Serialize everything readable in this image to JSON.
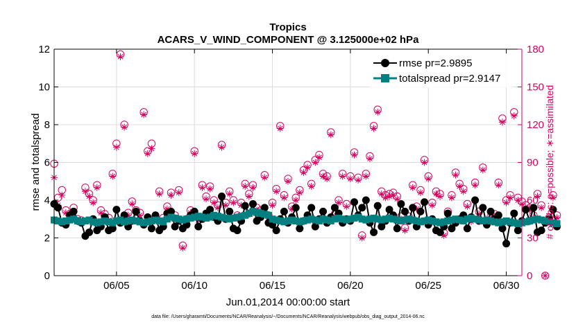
{
  "chart_data": {
    "type": "line",
    "title": "Tropics",
    "subtitle": "ACARS_V_WIND_COMPONENT @ 3.125000e+02 hPa",
    "xlabel": "Jun.01,2014 00:00:00 start",
    "ylabel_left": "rmse and totalspread",
    "ylabel_right": "# of obs: o=possible; ∗=assimilated",
    "footer": "data file: /Users/gharamti/Documents/NCAR/Reanalysis/~/Documents/NCAR/Reanalysis/webpub/obs_diag_output_2014-06.nc",
    "x_ticks": [
      5,
      10,
      15,
      20,
      25,
      30
    ],
    "x_tick_labels": [
      "06/05",
      "06/10",
      "06/15",
      "06/20",
      "06/25",
      "06/30"
    ],
    "xlim": [
      1,
      31
    ],
    "ylim_left": [
      0,
      12
    ],
    "y_ticks_left": [
      0,
      2,
      4,
      6,
      8,
      10,
      12
    ],
    "ylim_right": [
      0,
      180
    ],
    "y_ticks_right": [
      0,
      30,
      60,
      90,
      120,
      150,
      180
    ],
    "legend": [
      {
        "label": "rmse pr=2.9895",
        "color": "#000000"
      },
      {
        "label": "totalspread pr=2.9147",
        "color": "#008080"
      }
    ],
    "colors": {
      "rmse": "#000000",
      "spread": "#008080",
      "obs": "#d6005f",
      "axis": "#000000"
    },
    "series": [
      {
        "name": "rmse",
        "axis": "left",
        "values": [
          3.8,
          3.6,
          2.8,
          2.7,
          3.2,
          3.4,
          2.9,
          2.8,
          2.1,
          2.3,
          3.0,
          2.4,
          2.6,
          3.1,
          2.4,
          2.5,
          3.5,
          2.8,
          3.2,
          2.6,
          2.9,
          3.4,
          2.9,
          2.7,
          3.1,
          2.5,
          3.2,
          2.4,
          2.6,
          3.3,
          3.4,
          2.6,
          2.9,
          2.5,
          2.7,
          3.2,
          3.4,
          2.6,
          3.0,
          3.3,
          3.5,
          3.1,
          2.9,
          4.2,
          3.0,
          3.4,
          2.5,
          2.4,
          2.9,
          3.7,
          3.3,
          3.8,
          2.9,
          3.1,
          3.6,
          2.8,
          2.7,
          2.4,
          3.0,
          3.4,
          2.8,
          3.1,
          3.6,
          2.5,
          2.9,
          3.2,
          3.6,
          2.6,
          3.0,
          3.4,
          2.8,
          3.1,
          3.6,
          3.3,
          2.8,
          3.0,
          2.9,
          3.9,
          3.2,
          3.6,
          4.0,
          2.8,
          2.3,
          3.7,
          2.6,
          2.9,
          3.5,
          3.2,
          2.5,
          3.8,
          3.4,
          2.9,
          3.6,
          2.6,
          3.4,
          3.9,
          2.7,
          3.0,
          2.4,
          2.3,
          2.6,
          3.3,
          2.5,
          2.8,
          3.0,
          3.2,
          2.5,
          3.1,
          4.0,
          2.9,
          3.6,
          2.7,
          3.4,
          3.0,
          3.2,
          2.5,
          1.7,
          2.8,
          3.3,
          2.4,
          2.9,
          3.5,
          2.9,
          3.6,
          2.3,
          2.4,
          2.8,
          3.0,
          3.5,
          2.6
        ]
      },
      {
        "name": "totalspread",
        "axis": "left",
        "values": [
          2.95,
          2.9,
          2.85,
          2.9,
          2.95,
          3.0,
          2.9,
          2.85,
          2.9,
          2.95,
          2.85,
          2.8,
          2.85,
          2.9,
          2.85,
          2.8,
          2.9,
          2.95,
          2.85,
          2.9,
          2.95,
          2.9,
          2.85,
          2.8,
          2.85,
          2.9,
          2.95,
          2.9,
          2.85,
          3.0,
          3.1,
          3.05,
          3.0,
          2.95,
          3.0,
          3.05,
          3.1,
          3.15,
          3.1,
          3.05,
          3.1,
          3.2,
          3.15,
          3.1,
          3.05,
          3.0,
          3.05,
          3.1,
          3.15,
          3.2,
          3.3,
          3.4,
          3.35,
          3.3,
          3.25,
          3.2,
          3.0,
          2.95,
          2.9,
          2.85,
          2.9,
          2.95,
          2.9,
          2.85,
          2.9,
          2.95,
          3.0,
          2.95,
          2.9,
          3.0,
          2.95,
          2.9,
          3.0,
          3.05,
          3.0,
          2.95,
          3.0,
          3.05,
          3.1,
          3.0,
          2.95,
          3.0,
          3.05,
          3.0,
          2.95,
          3.0,
          3.05,
          3.0,
          2.95,
          2.9,
          2.95,
          3.0,
          2.95,
          2.9,
          2.85,
          2.9,
          2.95,
          2.9,
          2.85,
          2.8,
          2.85,
          2.9,
          2.95,
          3.0,
          2.95,
          2.9,
          3.0,
          3.05,
          3.0,
          2.95,
          2.9,
          2.95,
          2.9,
          2.85,
          2.8,
          2.85,
          2.9,
          2.85,
          2.8,
          2.75,
          2.8,
          2.85,
          2.9,
          2.95,
          3.0,
          2.95,
          2.9,
          2.85,
          2.8,
          2.75
        ]
      },
      {
        "name": "obs_possible",
        "axis": "right",
        "marker": "circle",
        "values": [
          89,
          62,
          68,
          52,
          49,
          54,
          45,
          44,
          70,
          65,
          60,
          72,
          52,
          49,
          46,
          81,
          105,
          176,
          120,
          50,
          59,
          52,
          50,
          130,
          99,
          105,
          47,
          67,
          46,
          55,
          66,
          48,
          68,
          24,
          45,
          52,
          99,
          46,
          72,
          63,
          71,
          60,
          56,
          104,
          58,
          67,
          60,
          48,
          58,
          73,
          65,
          72,
          54,
          52,
          80,
          48,
          58,
          69,
          119,
          64,
          77,
          55,
          62,
          68,
          84,
          88,
          73,
          92,
          96,
          81,
          79,
          114,
          49,
          60,
          81,
          57,
          79,
          98,
          78,
          32,
          81,
          95,
          119,
          132,
          67,
          64,
          65,
          66,
          63,
          47,
          38,
          47,
          72,
          55,
          68,
          92,
          79,
          58,
          67,
          65,
          34,
          51,
          64,
          82,
          73,
          69,
          57,
          45,
          74,
          51,
          86,
          43,
          47,
          49,
          74,
          125,
          60,
          64,
          130,
          62,
          59,
          56,
          54,
          48,
          65,
          56,
          0,
          46,
          64,
          48
        ]
      },
      {
        "name": "obs_assimilated",
        "axis": "right",
        "marker": "asterisk",
        "values": [
          78,
          56,
          64,
          50,
          48,
          50,
          43,
          42,
          67,
          63,
          58,
          70,
          50,
          47,
          44,
          79,
          102,
          174,
          118,
          48,
          57,
          50,
          48,
          128,
          97,
          101,
          45,
          65,
          44,
          53,
          64,
          46,
          66,
          22,
          43,
          50,
          97,
          44,
          70,
          61,
          69,
          58,
          54,
          102,
          56,
          65,
          58,
          46,
          56,
          71,
          63,
          70,
          52,
          50,
          78,
          46,
          56,
          67,
          117,
          62,
          75,
          53,
          60,
          66,
          82,
          86,
          71,
          90,
          94,
          79,
          77,
          112,
          47,
          58,
          79,
          55,
          77,
          96,
          76,
          30,
          79,
          93,
          117,
          130,
          65,
          62,
          63,
          64,
          61,
          45,
          36,
          45,
          70,
          53,
          66,
          90,
          77,
          56,
          65,
          63,
          32,
          49,
          62,
          80,
          71,
          67,
          55,
          43,
          72,
          49,
          84,
          41,
          45,
          47,
          72,
          122,
          58,
          62,
          127,
          60,
          57,
          54,
          52,
          46,
          63,
          54,
          0,
          44,
          62,
          46
        ]
      }
    ]
  }
}
